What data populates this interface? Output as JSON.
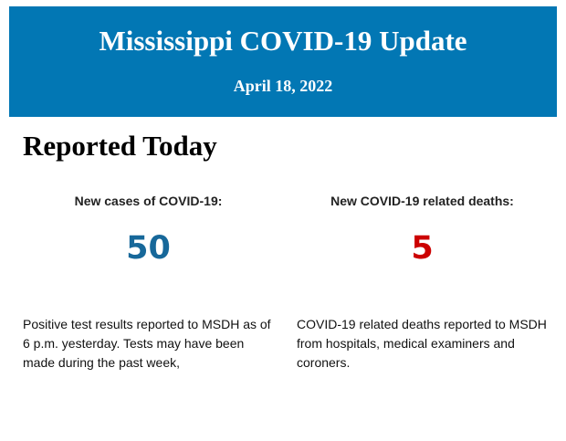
{
  "header": {
    "title": "Mississippi COVID-19 Update",
    "date": "April 18, 2022",
    "background_color": "#0277b4"
  },
  "section": {
    "heading": "Reported Today"
  },
  "stats": [
    {
      "label": "New cases of COVID-19:",
      "value": "50",
      "color": "#17689a",
      "description": "Positive test results reported to MSDH as of 6 p.m. yesterday. Tests may have been made during the past week,"
    },
    {
      "label": "New COVID-19 related deaths:",
      "value": "5",
      "color": "#cc0000",
      "description": "COVID-19 related deaths reported to MSDH from hospitals, medical examiners and coroners."
    }
  ]
}
